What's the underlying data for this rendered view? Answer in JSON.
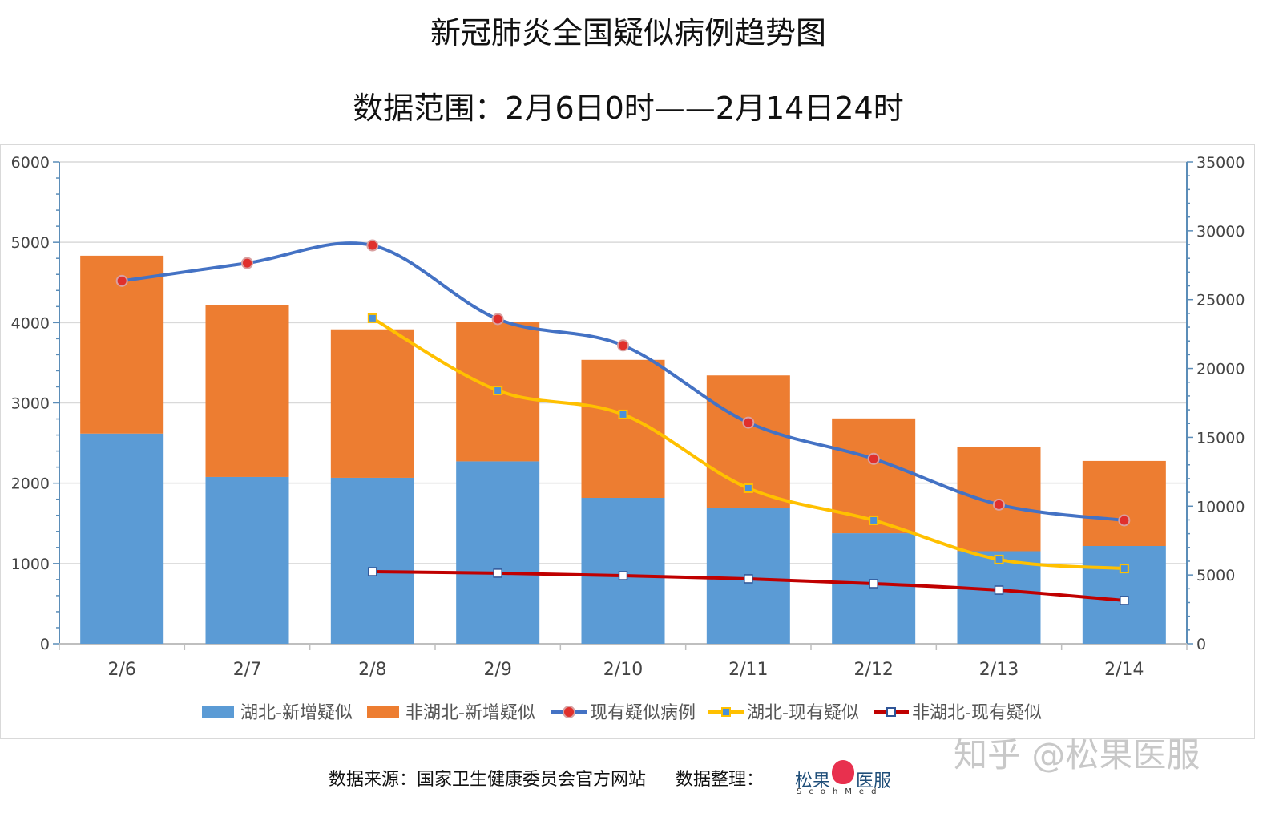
{
  "title": "新冠肺炎全国疑似病例趋势图",
  "subtitle": "数据范围：2月6日0时——2月14日24时",
  "footer": {
    "source": "数据来源：国家卫生健康委员会官方网站",
    "compiled": "数据整理：",
    "logo_cn_left": "松果",
    "logo_cn_right": "医服",
    "logo_en": "ScohMed"
  },
  "watermark": "知乎 @松果医服",
  "chart_data": {
    "type": "bar",
    "categories": [
      "2/6",
      "2/7",
      "2/8",
      "2/9",
      "2/10",
      "2/11",
      "2/12",
      "2/13",
      "2/14"
    ],
    "left_axis": {
      "ylim": [
        0,
        6000
      ],
      "ticks": [
        "0",
        "1000",
        "2000",
        "3000",
        "4000",
        "5000",
        "6000"
      ]
    },
    "right_axis": {
      "ylim": [
        0,
        35000
      ],
      "ticks": [
        "0",
        "5000",
        "10000",
        "15000",
        "20000",
        "25000",
        "30000",
        "35000"
      ]
    },
    "grid": true,
    "legend": "bottom",
    "bars": [
      {
        "name": "湖北-新增疑似",
        "color": "#5b9bd5",
        "stack": true,
        "values": [
          2618,
          2077,
          2067,
          2272,
          1817,
          1697,
          1377,
          1153,
          1218
        ]
      },
      {
        "name": "非湖北-新增疑似",
        "color": "#ed7d31",
        "stack": true,
        "values": [
          2215,
          2137,
          1849,
          1736,
          1719,
          1645,
          1430,
          1297,
          1059
        ]
      }
    ],
    "lines": [
      {
        "name": "现有疑似病例",
        "color": "#4472c4",
        "marker": "circle",
        "axis": "right",
        "values": [
          26359,
          27657,
          28942,
          23589,
          21675,
          16067,
          13435,
          10109,
          8969
        ]
      },
      {
        "name": "湖北-现有疑似",
        "color": "#ffc000",
        "marker": "square",
        "axis": "right",
        "values": [
          null,
          null,
          23650,
          18400,
          16660,
          11300,
          8970,
          6120,
          5470
        ]
      },
      {
        "name": "非湖北-现有疑似",
        "color": "#c00000",
        "marker": "square-white",
        "axis": "right",
        "values": [
          null,
          null,
          5240,
          5130,
          4950,
          4720,
          4370,
          3900,
          3150
        ]
      }
    ]
  }
}
